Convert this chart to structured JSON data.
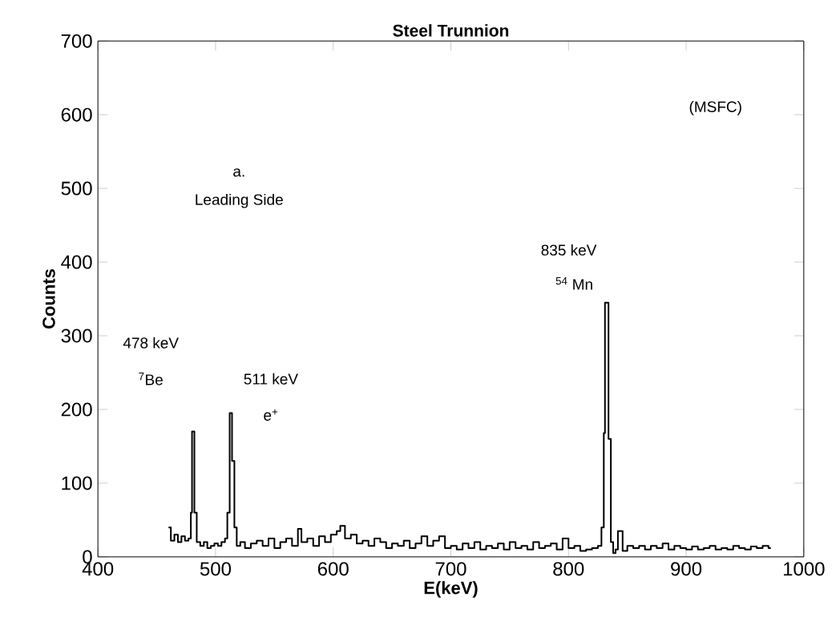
{
  "chart_data": {
    "type": "step",
    "title": "Steel Trunnion",
    "xlabel": "E(keV)",
    "ylabel": "Counts",
    "color": "#000000",
    "xlim": [
      400,
      1000
    ],
    "ylim": [
      0,
      700
    ],
    "xticks": [
      400,
      500,
      600,
      700,
      800,
      900,
      1000
    ],
    "yticks": [
      0,
      100,
      200,
      300,
      400,
      500,
      600,
      700
    ],
    "grid": false,
    "x": [
      460,
      462,
      465,
      468,
      471,
      474,
      477,
      479,
      480,
      482,
      484,
      487,
      490,
      493,
      496,
      499,
      502,
      505,
      508,
      510,
      512,
      514,
      516,
      518,
      521,
      525,
      530,
      535,
      540,
      545,
      550,
      555,
      560,
      565,
      570,
      573,
      578,
      583,
      588,
      593,
      598,
      603,
      606,
      610,
      615,
      620,
      625,
      630,
      635,
      640,
      645,
      650,
      655,
      660,
      665,
      670,
      675,
      680,
      685,
      690,
      695,
      700,
      705,
      710,
      715,
      720,
      725,
      730,
      735,
      740,
      745,
      750,
      755,
      760,
      765,
      770,
      775,
      780,
      785,
      790,
      795,
      800,
      805,
      810,
      815,
      820,
      825,
      828,
      830,
      831,
      834,
      836,
      838,
      840,
      842,
      846,
      850,
      855,
      860,
      865,
      870,
      875,
      880,
      885,
      890,
      895,
      900,
      905,
      910,
      915,
      920,
      925,
      930,
      935,
      940,
      945,
      950,
      955,
      960,
      965,
      970,
      972
    ],
    "values": [
      40,
      22,
      30,
      20,
      28,
      22,
      25,
      60,
      170,
      60,
      20,
      15,
      20,
      12,
      15,
      18,
      15,
      20,
      25,
      60,
      195,
      130,
      40,
      15,
      20,
      12,
      18,
      22,
      15,
      25,
      12,
      20,
      25,
      15,
      38,
      20,
      25,
      15,
      28,
      20,
      30,
      35,
      42,
      25,
      30,
      18,
      22,
      15,
      25,
      20,
      12,
      18,
      15,
      22,
      12,
      18,
      28,
      15,
      22,
      28,
      12,
      15,
      10,
      18,
      12,
      20,
      10,
      15,
      12,
      18,
      10,
      20,
      12,
      15,
      10,
      20,
      12,
      15,
      18,
      10,
      25,
      12,
      15,
      8,
      10,
      12,
      15,
      40,
      168,
      345,
      160,
      20,
      5,
      10,
      35,
      8,
      15,
      12,
      15,
      10,
      15,
      12,
      18,
      10,
      15,
      12,
      10,
      14,
      10,
      12,
      15,
      10,
      12,
      10,
      15,
      12,
      10,
      14,
      12,
      15,
      12,
      12
    ],
    "annotations": [
      "a.",
      "Leading Side",
      "(MSFC)",
      "835 keV",
      "$^{54}$ Mn",
      "478 keV",
      "$^{7}$Be",
      "511 keV",
      "e$^{+}$"
    ]
  }
}
